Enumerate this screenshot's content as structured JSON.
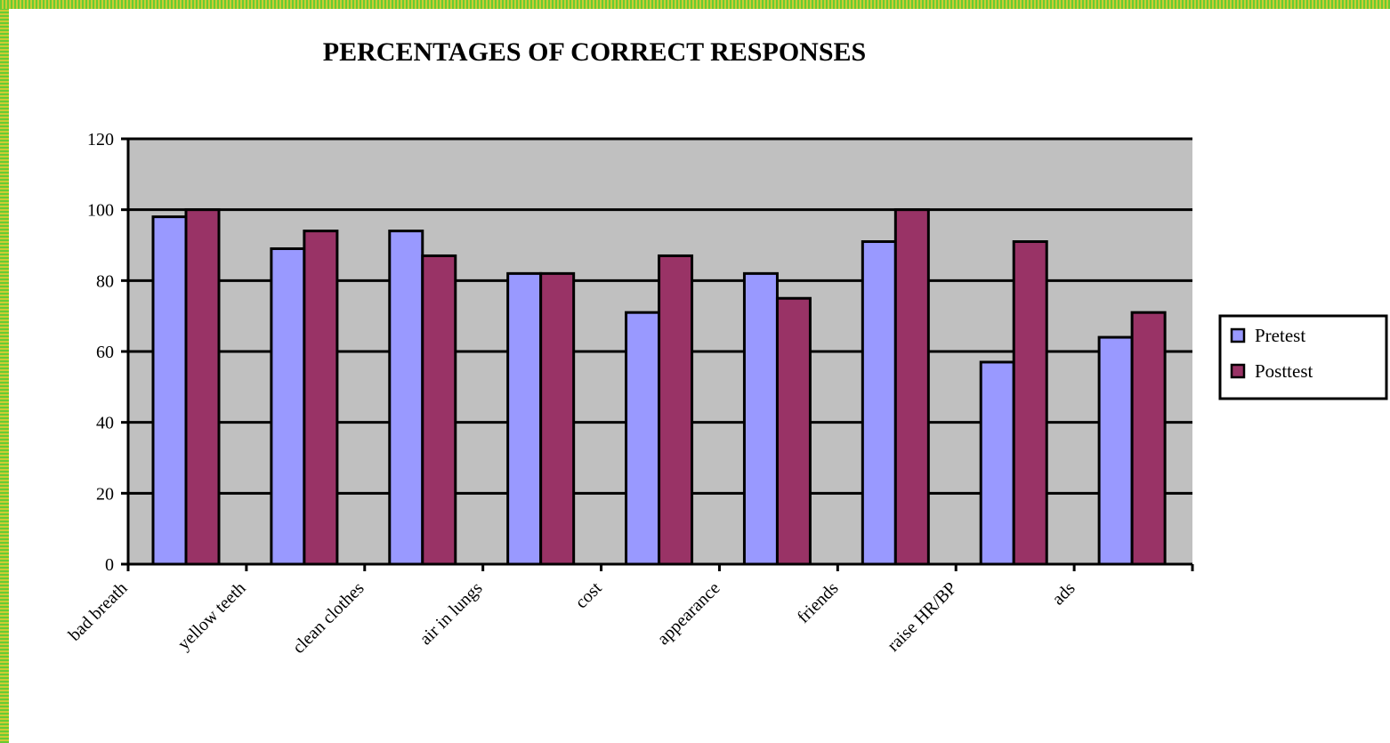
{
  "chart_data": {
    "type": "bar",
    "title": "PERCENTAGES OF CORRECT RESPONSES",
    "xlabel": "",
    "ylabel": "",
    "ylim": [
      0,
      120
    ],
    "yticks": [
      0,
      20,
      40,
      60,
      80,
      100,
      120
    ],
    "grid": true,
    "legend_position": "right",
    "categories": [
      "bad breath",
      "yellow teeth",
      "clean clothes",
      "air in lungs",
      "cost",
      "appearance",
      "friends",
      "raise HR/BP",
      "ads"
    ],
    "series": [
      {
        "name": "Pretest",
        "color": "#9999ff",
        "values": [
          98,
          89,
          94,
          82,
          71,
          82,
          91,
          57,
          64
        ]
      },
      {
        "name": "Posttest",
        "color": "#993366",
        "values": [
          100,
          94,
          87,
          82,
          87,
          75,
          100,
          91,
          71
        ]
      }
    ],
    "plot_background": "#c0c0c0"
  }
}
